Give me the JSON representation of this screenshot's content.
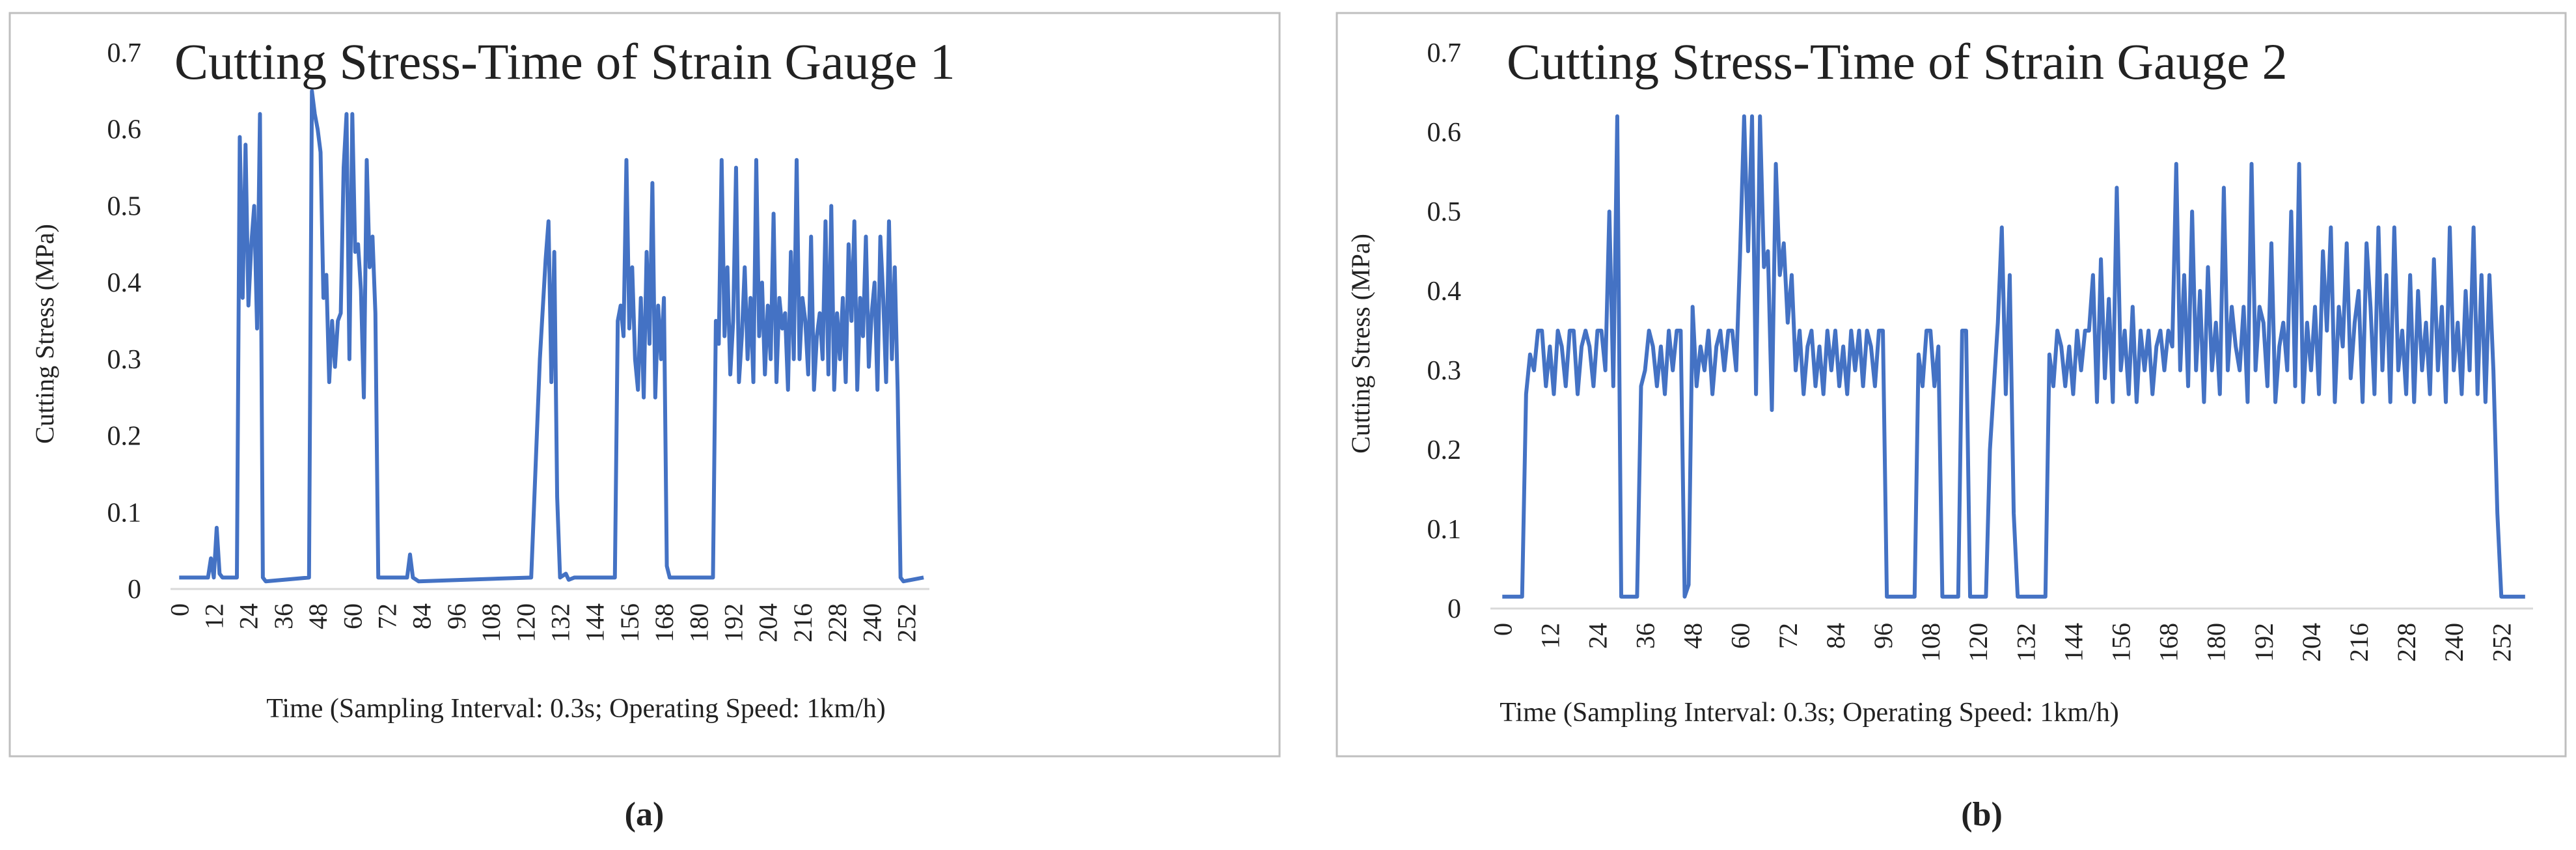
{
  "chart_data": [
    {
      "type": "line",
      "title": "Cutting Stress-Time of Strain Gauge 1",
      "y_label": "Cutting Stress (MPa)",
      "x_label": "Time (Sampling Interval: 0.3s; Operating Speed:  1km/h)",
      "caption": "(a)",
      "color": "#4472c4",
      "x": [
        0,
        10,
        11,
        12,
        13,
        14,
        15,
        19,
        20,
        21,
        22,
        23,
        24,
        25,
        26,
        27,
        28,
        29,
        30,
        45,
        46,
        47,
        48,
        49,
        50,
        51,
        52,
        53,
        54,
        55,
        56,
        57,
        58,
        59,
        60,
        61,
        62,
        63,
        64,
        65,
        66,
        67,
        68,
        69,
        79,
        80,
        81,
        83,
        122,
        125,
        127,
        128,
        129,
        130,
        131,
        132,
        134,
        135,
        137,
        151,
        152,
        153,
        154,
        155,
        156,
        157,
        158,
        159,
        160,
        161,
        162,
        163,
        164,
        165,
        166,
        167,
        168,
        169,
        170,
        185,
        186,
        187,
        188,
        189,
        190,
        191,
        192,
        193,
        194,
        195,
        196,
        197,
        198,
        199,
        200,
        201,
        202,
        203,
        204,
        205,
        206,
        207,
        208,
        209,
        210,
        211,
        212,
        213,
        214,
        215,
        216,
        217,
        218,
        219,
        220,
        221,
        222,
        223,
        224,
        225,
        226,
        227,
        228,
        229,
        230,
        231,
        232,
        233,
        234,
        235,
        236,
        237,
        238,
        239,
        240,
        241,
        242,
        243,
        244,
        245,
        246,
        247,
        248,
        249,
        250,
        251,
        258
      ],
      "values": [
        0.015,
        0.015,
        0.04,
        0.015,
        0.08,
        0.02,
        0.015,
        0.015,
        0.015,
        0.59,
        0.38,
        0.58,
        0.37,
        0.45,
        0.5,
        0.34,
        0.62,
        0.015,
        0.01,
        0.015,
        0.65,
        0.62,
        0.6,
        0.57,
        0.38,
        0.41,
        0.27,
        0.35,
        0.29,
        0.35,
        0.36,
        0.55,
        0.62,
        0.3,
        0.62,
        0.44,
        0.45,
        0.39,
        0.25,
        0.56,
        0.42,
        0.46,
        0.36,
        0.015,
        0.015,
        0.045,
        0.015,
        0.01,
        0.015,
        0.3,
        0.43,
        0.48,
        0.27,
        0.44,
        0.12,
        0.015,
        0.02,
        0.012,
        0.015,
        0.015,
        0.35,
        0.37,
        0.33,
        0.56,
        0.34,
        0.42,
        0.3,
        0.26,
        0.38,
        0.25,
        0.44,
        0.32,
        0.53,
        0.25,
        0.37,
        0.3,
        0.38,
        0.03,
        0.015,
        0.015,
        0.35,
        0.32,
        0.56,
        0.33,
        0.42,
        0.28,
        0.35,
        0.55,
        0.27,
        0.33,
        0.42,
        0.3,
        0.38,
        0.27,
        0.56,
        0.33,
        0.4,
        0.28,
        0.37,
        0.3,
        0.49,
        0.27,
        0.38,
        0.34,
        0.36,
        0.26,
        0.44,
        0.3,
        0.56,
        0.3,
        0.38,
        0.35,
        0.28,
        0.46,
        0.26,
        0.33,
        0.36,
        0.3,
        0.48,
        0.28,
        0.5,
        0.26,
        0.36,
        0.3,
        0.38,
        0.27,
        0.45,
        0.35,
        0.48,
        0.26,
        0.38,
        0.33,
        0.46,
        0.29,
        0.36,
        0.4,
        0.26,
        0.46,
        0.38,
        0.27,
        0.48,
        0.3,
        0.42,
        0.26,
        0.015,
        0.01,
        0.015
      ],
      "xlim": [
        -3,
        260
      ],
      "ylim": [
        0,
        0.7
      ],
      "xticks": [
        0,
        12,
        24,
        36,
        48,
        60,
        72,
        84,
        96,
        108,
        120,
        132,
        144,
        156,
        168,
        180,
        192,
        204,
        216,
        228,
        240,
        252
      ],
      "yticks": [
        0,
        0.1,
        0.2,
        0.3,
        0.4,
        0.5,
        0.6,
        0.7
      ]
    },
    {
      "type": "line",
      "title": "Cutting Stress-Time of Strain Gauge 2",
      "y_label": "Cutting Stress (MPa)",
      "x_label": "Time (Sampling Interval: 0.3s; Operating Speed:  1km/h)",
      "caption": "(b)",
      "color": "#4472c4",
      "x": [
        0,
        5,
        6,
        7,
        8,
        9,
        10,
        11,
        12,
        13,
        14,
        15,
        16,
        17,
        18,
        19,
        20,
        21,
        22,
        23,
        24,
        25,
        26,
        27,
        28,
        29,
        30,
        34,
        35,
        36,
        37,
        38,
        39,
        40,
        41,
        42,
        43,
        44,
        45,
        46,
        47,
        48,
        49,
        50,
        51,
        52,
        53,
        54,
        55,
        56,
        57,
        58,
        59,
        60,
        61,
        62,
        63,
        64,
        65,
        66,
        67,
        68,
        69,
        70,
        71,
        72,
        73,
        74,
        75,
        76,
        77,
        78,
        79,
        80,
        81,
        82,
        83,
        84,
        85,
        86,
        87,
        88,
        89,
        90,
        91,
        92,
        93,
        94,
        95,
        96,
        97,
        104,
        105,
        106,
        107,
        108,
        109,
        110,
        111,
        115,
        116,
        117,
        118,
        122,
        123,
        125,
        126,
        127,
        128,
        129,
        130,
        137,
        138,
        139,
        140,
        141,
        142,
        143,
        144,
        145,
        146,
        147,
        148,
        149,
        150,
        151,
        152,
        153,
        154,
        155,
        156,
        157,
        158,
        159,
        160,
        161,
        162,
        163,
        164,
        165,
        166,
        167,
        168,
        169,
        170,
        171,
        172,
        173,
        174,
        175,
        176,
        177,
        178,
        179,
        180,
        181,
        182,
        183,
        184,
        185,
        186,
        187,
        188,
        189,
        190,
        191,
        192,
        193,
        194,
        195,
        196,
        197,
        198,
        199,
        200,
        201,
        202,
        203,
        204,
        205,
        206,
        207,
        208,
        209,
        210,
        211,
        212,
        213,
        214,
        215,
        216,
        217,
        218,
        219,
        220,
        221,
        222,
        223,
        224,
        225,
        226,
        227,
        228,
        229,
        230,
        231,
        232,
        233,
        234,
        235,
        236,
        237,
        238,
        239,
        240,
        241,
        242,
        243,
        244,
        245,
        246,
        247,
        248,
        249,
        250,
        251,
        252,
        258
      ],
      "values": [
        0.015,
        0.015,
        0.27,
        0.32,
        0.3,
        0.35,
        0.35,
        0.28,
        0.33,
        0.27,
        0.35,
        0.33,
        0.28,
        0.35,
        0.35,
        0.27,
        0.33,
        0.35,
        0.33,
        0.28,
        0.35,
        0.35,
        0.3,
        0.5,
        0.28,
        0.62,
        0.015,
        0.015,
        0.28,
        0.3,
        0.35,
        0.33,
        0.28,
        0.33,
        0.27,
        0.35,
        0.3,
        0.35,
        0.35,
        0.015,
        0.03,
        0.38,
        0.28,
        0.33,
        0.3,
        0.35,
        0.27,
        0.33,
        0.35,
        0.3,
        0.35,
        0.35,
        0.3,
        0.45,
        0.62,
        0.45,
        0.62,
        0.27,
        0.62,
        0.43,
        0.45,
        0.25,
        0.56,
        0.42,
        0.46,
        0.36,
        0.42,
        0.3,
        0.35,
        0.27,
        0.33,
        0.35,
        0.28,
        0.33,
        0.27,
        0.35,
        0.3,
        0.35,
        0.28,
        0.33,
        0.27,
        0.35,
        0.3,
        0.35,
        0.28,
        0.35,
        0.33,
        0.28,
        0.35,
        0.35,
        0.015,
        0.015,
        0.32,
        0.28,
        0.35,
        0.35,
        0.28,
        0.33,
        0.015,
        0.015,
        0.35,
        0.35,
        0.015,
        0.015,
        0.2,
        0.36,
        0.48,
        0.27,
        0.42,
        0.12,
        0.015,
        0.015,
        0.32,
        0.28,
        0.35,
        0.33,
        0.28,
        0.33,
        0.27,
        0.35,
        0.3,
        0.35,
        0.35,
        0.42,
        0.26,
        0.44,
        0.29,
        0.39,
        0.26,
        0.53,
        0.3,
        0.35,
        0.27,
        0.38,
        0.26,
        0.35,
        0.3,
        0.35,
        0.27,
        0.33,
        0.35,
        0.3,
        0.35,
        0.33,
        0.56,
        0.3,
        0.42,
        0.28,
        0.5,
        0.3,
        0.4,
        0.26,
        0.43,
        0.3,
        0.36,
        0.27,
        0.53,
        0.3,
        0.38,
        0.33,
        0.3,
        0.38,
        0.26,
        0.56,
        0.3,
        0.38,
        0.36,
        0.28,
        0.46,
        0.26,
        0.33,
        0.36,
        0.3,
        0.5,
        0.28,
        0.56,
        0.26,
        0.36,
        0.3,
        0.38,
        0.27,
        0.45,
        0.35,
        0.48,
        0.26,
        0.38,
        0.33,
        0.46,
        0.29,
        0.36,
        0.4,
        0.26,
        0.46,
        0.38,
        0.27,
        0.48,
        0.3,
        0.42,
        0.26,
        0.48,
        0.3,
        0.35,
        0.27,
        0.42,
        0.26,
        0.4,
        0.3,
        0.36,
        0.27,
        0.44,
        0.3,
        0.38,
        0.26,
        0.48,
        0.3,
        0.36,
        0.27,
        0.4,
        0.3,
        0.48,
        0.27,
        0.42,
        0.26,
        0.42,
        0.3,
        0.12,
        0.015,
        0.015
      ],
      "xlim": [
        -3,
        260
      ],
      "ylim": [
        0,
        0.7
      ],
      "xticks": [
        0,
        12,
        24,
        36,
        48,
        60,
        72,
        84,
        96,
        108,
        120,
        132,
        144,
        156,
        168,
        180,
        192,
        204,
        216,
        228,
        240,
        252
      ],
      "yticks": [
        0,
        0.1,
        0.2,
        0.3,
        0.4,
        0.5,
        0.6,
        0.7
      ]
    }
  ]
}
